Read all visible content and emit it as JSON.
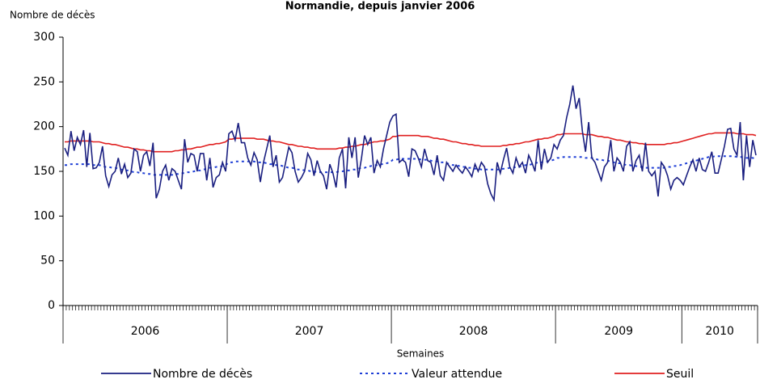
{
  "chart_data": {
    "type": "line",
    "title": "Normandie, depuis janvier 2006",
    "y_label": "Nombre de décès",
    "x_label": "Semaines",
    "ylim": [
      0,
      300
    ],
    "yticks": [
      0,
      50,
      100,
      150,
      200,
      250,
      300
    ],
    "grid": false,
    "legend": "bottom",
    "categories": [
      "2006",
      "2006",
      "2006",
      "2006",
      "2006",
      "2006",
      "2006",
      "2006",
      "2006",
      "2006",
      "2006",
      "2006",
      "2006",
      "2006",
      "2006",
      "2006",
      "2006",
      "2006",
      "2006",
      "2006",
      "2006",
      "2006",
      "2006",
      "2006",
      "2006",
      "2006",
      "2006",
      "2006",
      "2006",
      "2006",
      "2006",
      "2006",
      "2006",
      "2006",
      "2006",
      "2006",
      "2006",
      "2006",
      "2006",
      "2006",
      "2006",
      "2006",
      "2006",
      "2006",
      "2006",
      "2006",
      "2006",
      "2006",
      "2006",
      "2006",
      "2006",
      "2006",
      "2007",
      "2007",
      "2007",
      "2007",
      "2007",
      "2007",
      "2007",
      "2007",
      "2007",
      "2007",
      "2007",
      "2007",
      "2007",
      "2007",
      "2007",
      "2007",
      "2007",
      "2007",
      "2007",
      "2007",
      "2007",
      "2007",
      "2007",
      "2007",
      "2007",
      "2007",
      "2007",
      "2007",
      "2007",
      "2007",
      "2007",
      "2007",
      "2007",
      "2007",
      "2007",
      "2007",
      "2007",
      "2007",
      "2007",
      "2007",
      "2007",
      "2007",
      "2007",
      "2007",
      "2007",
      "2007",
      "2007",
      "2007",
      "2007",
      "2007",
      "2007",
      "2007",
      "2008",
      "2008",
      "2008",
      "2008",
      "2008",
      "2008",
      "2008",
      "2008",
      "2008",
      "2008",
      "2008",
      "2008",
      "2008",
      "2008",
      "2008",
      "2008",
      "2008",
      "2008",
      "2008",
      "2008",
      "2008",
      "2008",
      "2008",
      "2008",
      "2008",
      "2008",
      "2008",
      "2008",
      "2008",
      "2008",
      "2008",
      "2008",
      "2008",
      "2008",
      "2008",
      "2008",
      "2008",
      "2008",
      "2008",
      "2008",
      "2008",
      "2008",
      "2008",
      "2008",
      "2008",
      "2008",
      "2008",
      "2008",
      "2008",
      "2008",
      "2008",
      "2008",
      "2009",
      "2009",
      "2009",
      "2009",
      "2009",
      "2009",
      "2009",
      "2009",
      "2009",
      "2009",
      "2009",
      "2009",
      "2009",
      "2009",
      "2009",
      "2009",
      "2009",
      "2009",
      "2009",
      "2009",
      "2009",
      "2009",
      "2009",
      "2009",
      "2009",
      "2009",
      "2009",
      "2009",
      "2009",
      "2009",
      "2009",
      "2009",
      "2009",
      "2009",
      "2009",
      "2009",
      "2009",
      "2009",
      "2009",
      "2009",
      "2010",
      "2010",
      "2010",
      "2010",
      "2010",
      "2010",
      "2010",
      "2010",
      "2010",
      "2010",
      "2010",
      "2010",
      "2010",
      "2010",
      "2010",
      "2010",
      "2010",
      "2010",
      "2010",
      "2010",
      "2010",
      "2010",
      "2010",
      "2010"
    ],
    "series": [
      {
        "name": "Nombre de décès",
        "color": "#1a1f80",
        "dash": "solid",
        "values": [
          176,
          168,
          195,
          173,
          188,
          180,
          196,
          155,
          193,
          153,
          154,
          160,
          178,
          145,
          133,
          146,
          150,
          165,
          147,
          158,
          143,
          148,
          175,
          172,
          150,
          168,
          172,
          156,
          182,
          120,
          130,
          150,
          157,
          140,
          153,
          150,
          140,
          130,
          186,
          160,
          170,
          168,
          150,
          170,
          170,
          140,
          165,
          132,
          143,
          146,
          160,
          150,
          192,
          195,
          185,
          204,
          182,
          182,
          165,
          157,
          171,
          163,
          138,
          160,
          175,
          190,
          155,
          168,
          138,
          143,
          160,
          177,
          171,
          150,
          138,
          143,
          150,
          170,
          163,
          145,
          162,
          150,
          145,
          130,
          158,
          148,
          132,
          165,
          175,
          131,
          188,
          165,
          188,
          143,
          164,
          190,
          180,
          188,
          148,
          162,
          155,
          175,
          190,
          205,
          212,
          214,
          160,
          163,
          160,
          144,
          175,
          173,
          165,
          155,
          175,
          162,
          160,
          146,
          168,
          145,
          140,
          160,
          155,
          150,
          157,
          152,
          148,
          155,
          150,
          144,
          158,
          150,
          160,
          155,
          136,
          125,
          118,
          160,
          148,
          163,
          176,
          155,
          148,
          165,
          155,
          160,
          148,
          168,
          160,
          150,
          185,
          152,
          175,
          160,
          165,
          180,
          175,
          185,
          190,
          210,
          225,
          246,
          220,
          232,
          195,
          172,
          205,
          165,
          160,
          150,
          140,
          155,
          160,
          185,
          150,
          165,
          160,
          150,
          178,
          183,
          150,
          162,
          168,
          150,
          182,
          150,
          145,
          150,
          122,
          160,
          155,
          145,
          130,
          140,
          143,
          140,
          135,
          145,
          155,
          163,
          150,
          165,
          152,
          150,
          160,
          172,
          148,
          148,
          163,
          178,
          197,
          198,
          175,
          168,
          205,
          140,
          190,
          155,
          185,
          168
        ]
      },
      {
        "name": "Valeur attendue",
        "color": "#1f3fd6",
        "dash": "dotted",
        "values": [
          157,
          157,
          158,
          158,
          158,
          158,
          158,
          158,
          158,
          157,
          157,
          157,
          156,
          155,
          155,
          154,
          154,
          153,
          152,
          151,
          151,
          150,
          149,
          149,
          148,
          148,
          147,
          147,
          146,
          146,
          146,
          146,
          146,
          146,
          146,
          147,
          147,
          148,
          148,
          149,
          149,
          150,
          151,
          151,
          152,
          153,
          154,
          154,
          155,
          155,
          156,
          157,
          160,
          160,
          161,
          161,
          161,
          161,
          161,
          161,
          161,
          160,
          160,
          160,
          159,
          158,
          158,
          157,
          157,
          156,
          155,
          154,
          154,
          153,
          152,
          152,
          151,
          151,
          150,
          150,
          149,
          149,
          149,
          149,
          149,
          149,
          149,
          150,
          150,
          151,
          151,
          152,
          152,
          153,
          154,
          154,
          155,
          156,
          157,
          157,
          158,
          158,
          159,
          160,
          163,
          163,
          164,
          164,
          164,
          164,
          164,
          164,
          164,
          163,
          163,
          163,
          162,
          161,
          161,
          160,
          160,
          159,
          158,
          157,
          157,
          156,
          155,
          155,
          154,
          154,
          153,
          153,
          152,
          152,
          152,
          152,
          152,
          152,
          152,
          153,
          153,
          154,
          154,
          155,
          155,
          156,
          157,
          157,
          158,
          159,
          160,
          160,
          161,
          161,
          162,
          163,
          165,
          165,
          166,
          166,
          166,
          166,
          166,
          166,
          166,
          165,
          165,
          165,
          164,
          163,
          163,
          162,
          162,
          161,
          160,
          159,
          159,
          158,
          157,
          157,
          156,
          156,
          155,
          155,
          154,
          154,
          154,
          154,
          154,
          154,
          154,
          155,
          155,
          156,
          156,
          157,
          158,
          159,
          160,
          161,
          162,
          163,
          164,
          165,
          166,
          166,
          167,
          167,
          167,
          167,
          167,
          167,
          167,
          166,
          166,
          166,
          165,
          165,
          165,
          164
        ]
      },
      {
        "name": "Seuil",
        "color": "#e02020",
        "dash": "solid",
        "values": [
          183,
          183,
          184,
          184,
          184,
          184,
          184,
          184,
          184,
          183,
          183,
          183,
          182,
          181,
          181,
          180,
          180,
          179,
          178,
          177,
          177,
          176,
          175,
          175,
          174,
          174,
          173,
          173,
          172,
          172,
          172,
          172,
          172,
          172,
          172,
          173,
          173,
          174,
          174,
          175,
          175,
          176,
          177,
          177,
          178,
          179,
          180,
          180,
          181,
          181,
          182,
          183,
          186,
          186,
          187,
          187,
          187,
          187,
          187,
          187,
          187,
          186,
          186,
          186,
          185,
          184,
          184,
          183,
          183,
          182,
          181,
          180,
          180,
          179,
          178,
          178,
          177,
          177,
          176,
          176,
          175,
          175,
          175,
          175,
          175,
          175,
          175,
          176,
          176,
          177,
          177,
          178,
          178,
          179,
          180,
          180,
          181,
          182,
          183,
          183,
          184,
          184,
          185,
          186,
          189,
          189,
          190,
          190,
          190,
          190,
          190,
          190,
          190,
          189,
          189,
          189,
          188,
          187,
          187,
          186,
          186,
          185,
          184,
          183,
          183,
          182,
          181,
          181,
          180,
          180,
          179,
          179,
          178,
          178,
          178,
          178,
          178,
          178,
          178,
          179,
          179,
          180,
          180,
          181,
          181,
          182,
          183,
          183,
          184,
          185,
          186,
          186,
          187,
          187,
          188,
          189,
          191,
          191,
          192,
          192,
          192,
          192,
          192,
          192,
          192,
          191,
          191,
          191,
          190,
          189,
          189,
          188,
          188,
          187,
          186,
          185,
          185,
          184,
          183,
          183,
          182,
          182,
          181,
          181,
          180,
          180,
          180,
          180,
          180,
          180,
          180,
          181,
          181,
          182,
          182,
          183,
          184,
          185,
          186,
          187,
          188,
          189,
          190,
          191,
          192,
          192,
          193,
          193,
          193,
          193,
          193,
          193,
          193,
          192,
          192,
          192,
          191,
          191,
          191,
          190
        ]
      }
    ]
  }
}
